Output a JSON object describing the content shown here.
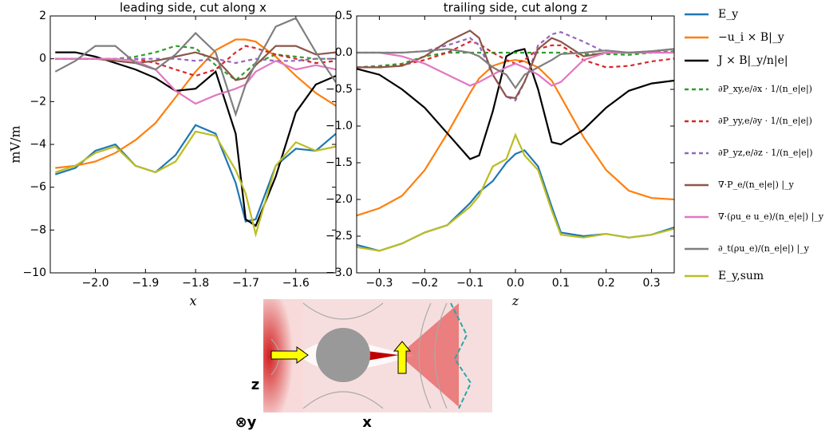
{
  "chart_data": [
    {
      "type": "line",
      "title": "leading side, cut along x",
      "xlabel": "x",
      "ylabel": "mV/m",
      "x": [
        -2.08,
        -2.04,
        -2.0,
        -1.96,
        -1.92,
        -1.88,
        -1.84,
        -1.8,
        -1.76,
        -1.72,
        -1.7,
        -1.68,
        -1.64,
        -1.6,
        -1.56,
        -1.52
      ],
      "xlim": [
        -2.09,
        -1.52
      ],
      "xticks": [
        {
          "value": -2.0,
          "label": "−2.0"
        },
        {
          "value": -1.9,
          "label": "−1.9"
        },
        {
          "value": -1.8,
          "label": "−1.8"
        },
        {
          "value": -1.7,
          "label": "−1.7"
        },
        {
          "value": -1.6,
          "label": "−1.6"
        }
      ],
      "ylim": [
        -10,
        2
      ],
      "yticks": [
        {
          "value": -10,
          "label": "−10"
        },
        {
          "value": -8,
          "label": "−8"
        },
        {
          "value": -6,
          "label": "−6"
        },
        {
          "value": -4,
          "label": "−4"
        },
        {
          "value": -2,
          "label": "−2"
        },
        0,
        2
      ],
      "series": [
        {
          "name": "E_y",
          "color": "#1f77b4",
          "dashed": false,
          "values": [
            -5.4,
            -5.1,
            -4.3,
            -4.0,
            -5.0,
            -5.3,
            -4.5,
            -3.1,
            -3.5,
            -5.8,
            -7.6,
            -7.5,
            -5.0,
            -4.2,
            -4.3,
            -3.5
          ]
        },
        {
          "name": "−u_i × B|_y",
          "color": "#ff7f0e",
          "dashed": false,
          "values": [
            -5.1,
            -5.0,
            -4.8,
            -4.4,
            -3.8,
            -3.0,
            -1.8,
            -0.6,
            0.4,
            0.9,
            0.9,
            0.8,
            0.1,
            -0.8,
            -1.6,
            -2.2
          ]
        },
        {
          "name": "J × B|_y/n|e|",
          "color": "#000000",
          "dashed": false,
          "values": [
            0.3,
            0.3,
            0.1,
            -0.2,
            -0.5,
            -0.9,
            -1.5,
            -1.4,
            -0.6,
            -3.5,
            -7.5,
            -7.8,
            -5.5,
            -2.5,
            -1.2,
            -0.8
          ]
        },
        {
          "name": "∂P_xy,e/∂x · 1/(n_e|e|)",
          "color": "#2ca02c",
          "dashed": true,
          "values": [
            0,
            0,
            0,
            0,
            0.1,
            0.3,
            0.6,
            0.5,
            -0.3,
            -1.0,
            -0.6,
            -0.2,
            0.2,
            0.1,
            0,
            0
          ]
        },
        {
          "name": "∂P_yy,e/∂y · 1/(n_e|e|)",
          "color": "#d62728",
          "dashed": true,
          "values": [
            0,
            0,
            0,
            0,
            0,
            -0.2,
            -0.5,
            -0.8,
            -0.5,
            0.3,
            0.6,
            0.5,
            0.2,
            0,
            -0.2,
            -0.1
          ]
        },
        {
          "name": "∂P_yz,e/∂z · 1/(n_e|e|)",
          "color": "#9467bd",
          "dashed": true,
          "values": [
            0,
            0,
            0,
            0,
            0,
            0,
            0,
            -0.1,
            0,
            -0.2,
            -0.1,
            0,
            -0.1,
            -0.1,
            0,
            0
          ]
        },
        {
          "name": "∇·P_e/(n_e|e|) |_y",
          "color": "#8c564b",
          "dashed": false,
          "values": [
            0,
            0,
            0,
            -0.1,
            -0.2,
            -0.1,
            0.1,
            0.3,
            0,
            -1.0,
            -0.9,
            -0.3,
            0.6,
            0.6,
            0.2,
            0.3
          ]
        },
        {
          "name": "∇·(ρu_e u_e)/(n_e|e|) |_y",
          "color": "#e377c2",
          "dashed": false,
          "values": [
            0,
            0,
            0,
            0,
            -0.1,
            -0.5,
            -1.5,
            -2.1,
            -1.7,
            -1.4,
            -1.2,
            -0.6,
            -0.1,
            -0.5,
            -0.3,
            -0.5
          ]
        },
        {
          "name": "∂_t(ρu_e)/(n_e|e|) |_y",
          "color": "#7f7f7f",
          "dashed": false,
          "values": [
            -0.6,
            -0.1,
            0.6,
            0.6,
            -0.2,
            -0.5,
            0.2,
            1.2,
            0.3,
            -2.6,
            -1.2,
            -0.2,
            1.5,
            1.9,
            0.3,
            -1.1
          ]
        },
        {
          "name": "E_y,sum",
          "color": "#bcbd22",
          "dashed": false,
          "values": [
            -5.3,
            -5.0,
            -4.4,
            -4.1,
            -5.0,
            -5.3,
            -4.8,
            -3.4,
            -3.6,
            -5.2,
            -6.3,
            -8.2,
            -5.0,
            -3.9,
            -4.3,
            -4.1
          ]
        }
      ]
    },
    {
      "type": "line",
      "title": "trailing side, cut along z",
      "xlabel": "z",
      "x": [
        -0.35,
        -0.3,
        -0.25,
        -0.2,
        -0.15,
        -0.1,
        -0.08,
        -0.05,
        -0.02,
        0,
        0.02,
        0.05,
        0.08,
        0.1,
        0.15,
        0.2,
        0.25,
        0.3,
        0.35
      ],
      "xlim": [
        -0.35,
        0.35
      ],
      "xticks": [
        {
          "value": -0.3,
          "label": "−0.3"
        },
        {
          "value": -0.2,
          "label": "−0.2"
        },
        {
          "value": -0.1,
          "label": "−0.1"
        },
        {
          "value": 0,
          "label": "0.0"
        },
        0.1,
        0.2,
        0.3
      ],
      "ylim": [
        -3,
        0.5
      ],
      "yticks": [
        {
          "value": -3,
          "label": "−3.0"
        },
        {
          "value": -2.5,
          "label": "−2.5"
        },
        {
          "value": -2,
          "label": "−2.0"
        },
        {
          "value": -1.5,
          "label": "−1.5"
        },
        {
          "value": -1,
          "label": "−1.0"
        },
        {
          "value": -0.5,
          "label": "−0.5"
        },
        {
          "value": 0,
          "label": "0.0"
        },
        0.5
      ],
      "series": [
        {
          "color": "#1f77b4",
          "dashed": false,
          "values": [
            -2.62,
            -2.7,
            -2.6,
            -2.45,
            -2.35,
            -2.05,
            -1.9,
            -1.75,
            -1.5,
            -1.38,
            -1.33,
            -1.55,
            -2.1,
            -2.45,
            -2.5,
            -2.47,
            -2.52,
            -2.48,
            -2.38
          ]
        },
        {
          "color": "#ff7f0e",
          "dashed": false,
          "values": [
            -2.22,
            -2.12,
            -1.95,
            -1.6,
            -1.1,
            -0.55,
            -0.35,
            -0.18,
            -0.12,
            -0.1,
            -0.12,
            -0.2,
            -0.38,
            -0.6,
            -1.15,
            -1.6,
            -1.88,
            -1.98,
            -2.0
          ]
        },
        {
          "color": "#000000",
          "dashed": false,
          "values": [
            -0.22,
            -0.3,
            -0.5,
            -0.75,
            -1.1,
            -1.45,
            -1.4,
            -0.8,
            -0.05,
            0.02,
            0.05,
            -0.5,
            -1.22,
            -1.25,
            -1.05,
            -0.75,
            -0.52,
            -0.42,
            -0.38
          ]
        },
        {
          "color": "#2ca02c",
          "dashed": true,
          "values": [
            -0.2,
            -0.18,
            -0.15,
            -0.05,
            0,
            0,
            0,
            0,
            0,
            0,
            0,
            0,
            0,
            0,
            -0.02,
            -0.02,
            -0.03,
            0,
            0.02
          ]
        },
        {
          "color": "#d62728",
          "dashed": true,
          "values": [
            -0.2,
            -0.2,
            -0.17,
            -0.1,
            0,
            0.15,
            0.12,
            0,
            -0.1,
            -0.15,
            -0.1,
            0.05,
            0.1,
            0.1,
            -0.1,
            -0.2,
            -0.18,
            -0.12,
            -0.08
          ]
        },
        {
          "color": "#9467bd",
          "dashed": true,
          "values": [
            0,
            0,
            0,
            0.02,
            0.1,
            0.2,
            0.1,
            -0.3,
            -0.6,
            -0.65,
            -0.4,
            0.1,
            0.25,
            0.28,
            0.15,
            0,
            0,
            0,
            0
          ]
        },
        {
          "color": "#8c564b",
          "dashed": false,
          "values": [
            -0.2,
            -0.2,
            -0.18,
            -0.05,
            0.15,
            0.3,
            0.2,
            -0.3,
            -0.6,
            -0.62,
            -0.4,
            0.05,
            0.2,
            0.15,
            -0.05,
            0,
            0,
            0.02,
            0.05
          ]
        },
        {
          "color": "#e377c2",
          "dashed": false,
          "values": [
            0,
            0,
            -0.05,
            -0.15,
            -0.3,
            -0.45,
            -0.4,
            -0.3,
            -0.2,
            -0.15,
            -0.2,
            -0.3,
            -0.45,
            -0.4,
            -0.1,
            0,
            0,
            0,
            0
          ]
        },
        {
          "color": "#7f7f7f",
          "dashed": false,
          "values": [
            0,
            0,
            0,
            0.02,
            0.05,
            0,
            -0.05,
            -0.2,
            -0.3,
            -0.48,
            -0.3,
            -0.2,
            -0.1,
            -0.02,
            0,
            0.03,
            0,
            0.02,
            0.05
          ]
        },
        {
          "color": "#bcbd22",
          "dashed": false,
          "values": [
            -2.65,
            -2.7,
            -2.6,
            -2.45,
            -2.35,
            -2.1,
            -1.95,
            -1.55,
            -1.45,
            -1.12,
            -1.4,
            -1.6,
            -2.15,
            -2.48,
            -2.52,
            -2.47,
            -2.52,
            -2.48,
            -2.4
          ]
        }
      ]
    }
  ],
  "inset_labels": [
    "z",
    "⊗y",
    "x"
  ]
}
